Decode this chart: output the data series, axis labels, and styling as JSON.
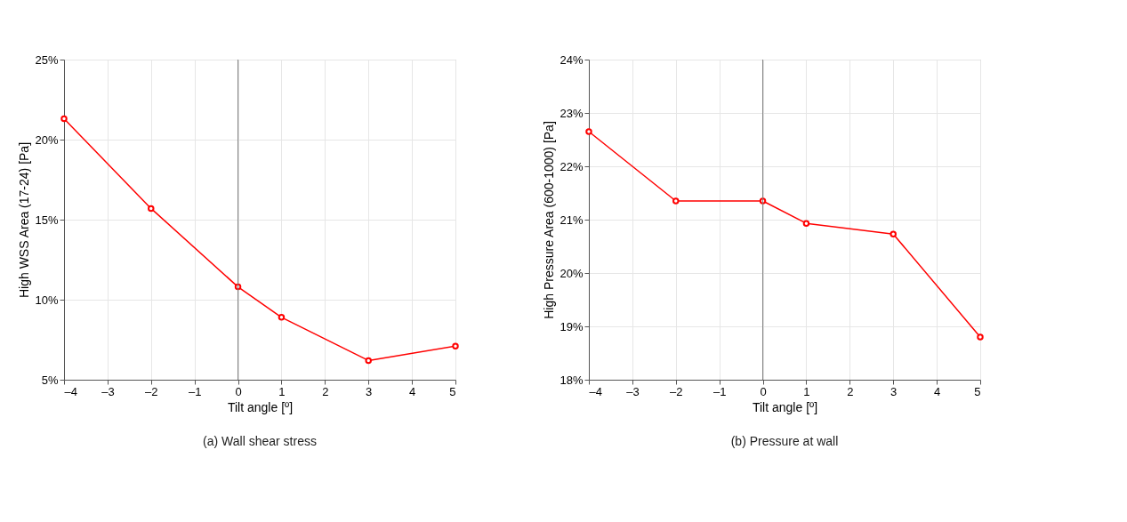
{
  "chart_data": [
    {
      "type": "line",
      "xlabel": "Tilt angle [º]",
      "ylabel": "High WSS Area (17-24) [Pa]",
      "x": [
        -4,
        -2,
        0,
        1,
        3,
        5
      ],
      "series": [
        {
          "color": "#ff0000",
          "values": [
            21.3,
            15.7,
            10.8,
            8.9,
            6.2,
            7.1
          ]
        }
      ],
      "xlim": [
        -4,
        5
      ],
      "xticks": [
        {
          "value": -4,
          "label": "–4"
        },
        {
          "value": -3,
          "label": "–3"
        },
        {
          "value": -2,
          "label": "–2"
        },
        {
          "value": -1,
          "label": "–1"
        },
        0,
        1,
        2,
        3,
        4,
        5
      ],
      "ylim": [
        5,
        25
      ],
      "yticks": [
        {
          "value": 5,
          "label": "5%"
        },
        {
          "value": 10,
          "label": "10%"
        },
        {
          "value": 15,
          "label": "15%"
        },
        {
          "value": 20,
          "label": "20%"
        },
        {
          "value": 25,
          "label": "25%"
        }
      ],
      "ref_lines": [
        {
          "axis": "x",
          "value": 0,
          "color": "#808080"
        }
      ],
      "grid": true,
      "marker": "circle",
      "line_style": "solid",
      "annotations": [
        "(a) Wall shear stress"
      ]
    },
    {
      "type": "line",
      "xlabel": "Tilt angle [º]",
      "ylabel": "High Pressure Area (600-1000) [Pa]",
      "x": [
        -4,
        -2,
        0,
        1,
        3,
        5
      ],
      "series": [
        {
          "color": "#ff0000",
          "values": [
            22.65,
            21.35,
            21.35,
            20.93,
            20.73,
            18.8
          ]
        }
      ],
      "xlim": [
        -4,
        5
      ],
      "xticks": [
        {
          "value": -4,
          "label": "–4"
        },
        {
          "value": -3,
          "label": "–3"
        },
        {
          "value": -2,
          "label": "–2"
        },
        {
          "value": -1,
          "label": "–1"
        },
        0,
        1,
        2,
        3,
        4,
        5
      ],
      "ylim": [
        18,
        24
      ],
      "yticks": [
        {
          "value": 18,
          "label": "18%"
        },
        {
          "value": 19,
          "label": "19%"
        },
        {
          "value": 20,
          "label": "20%"
        },
        {
          "value": 21,
          "label": "21%"
        },
        {
          "value": 22,
          "label": "22%"
        },
        {
          "value": 23,
          "label": "23%"
        },
        {
          "value": 24,
          "label": "24%"
        }
      ],
      "ref_lines": [
        {
          "axis": "x",
          "value": 0,
          "color": "#808080"
        }
      ],
      "grid": true,
      "marker": "circle",
      "line_style": "solid",
      "annotations": [
        "(b) Pressure at wall"
      ]
    }
  ]
}
